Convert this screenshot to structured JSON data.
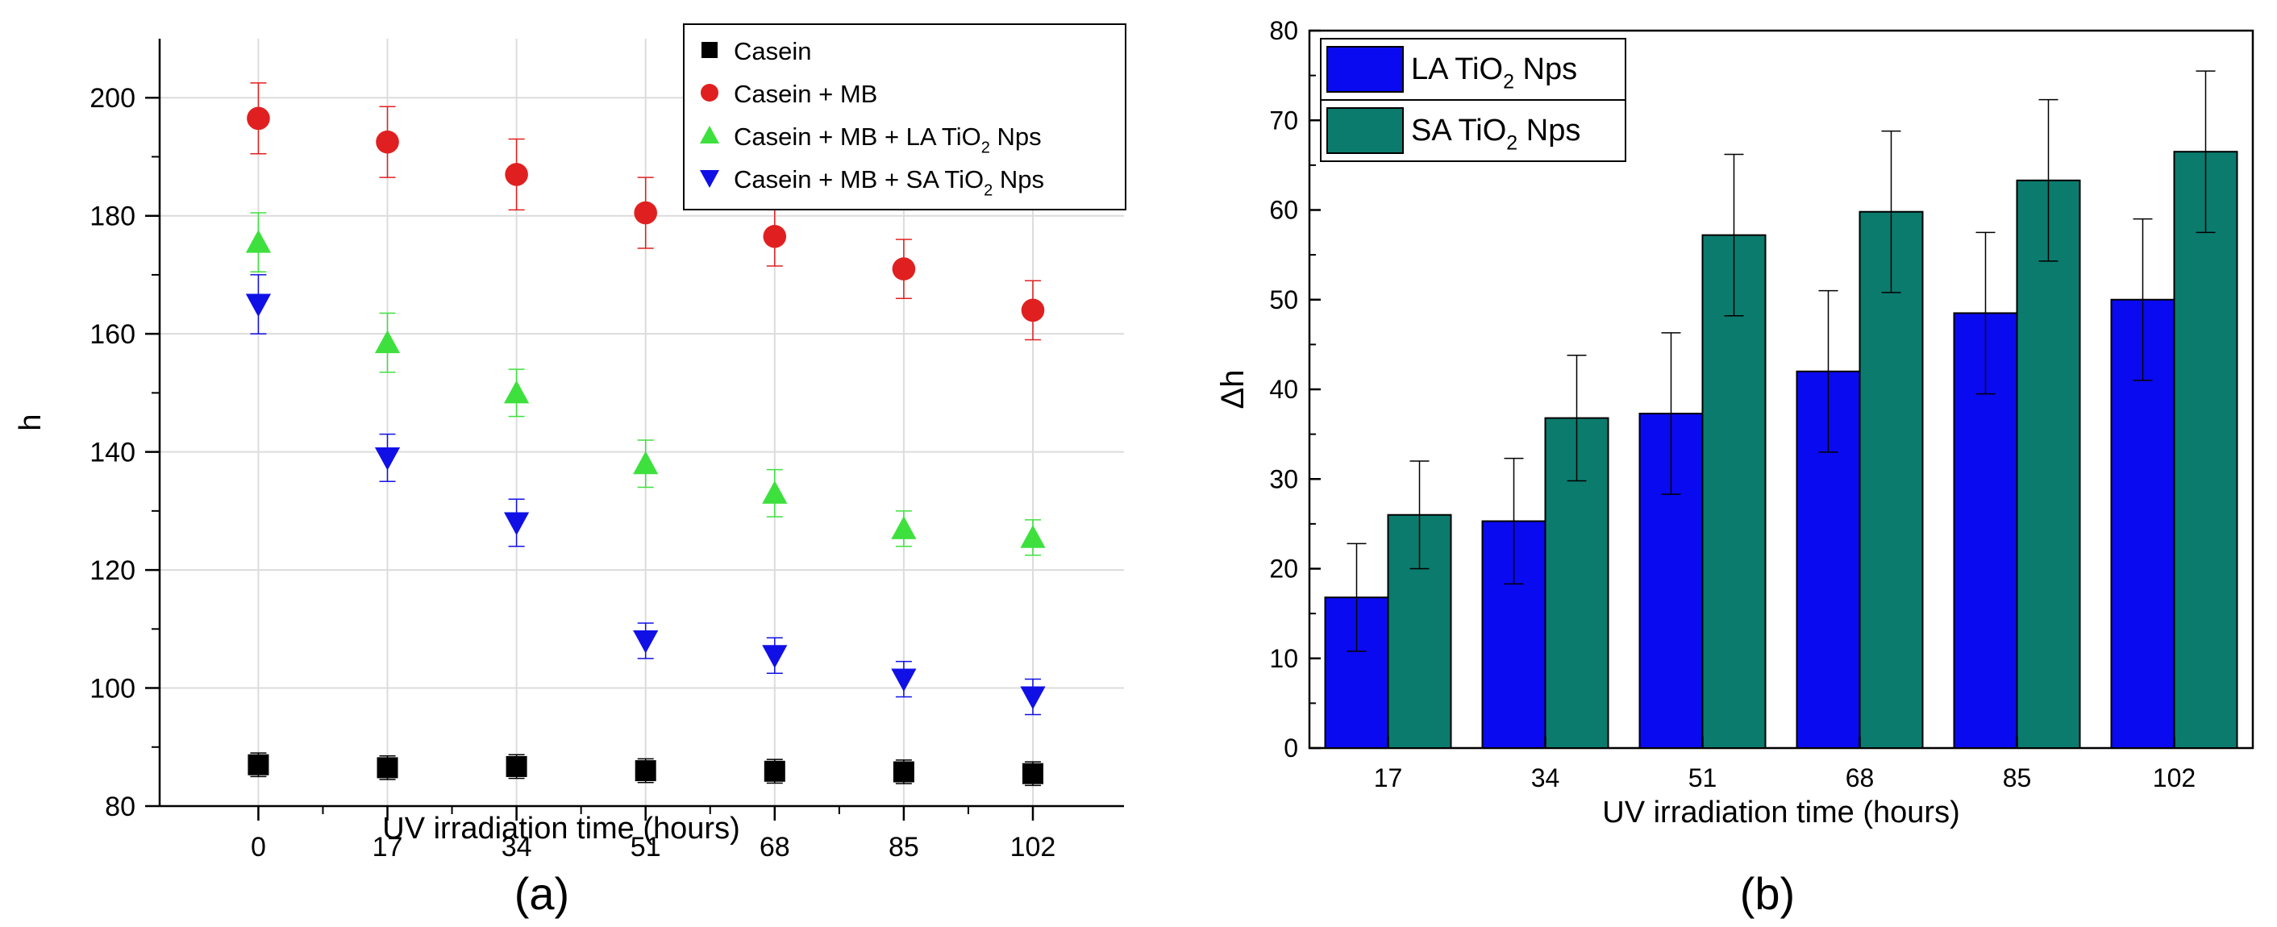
{
  "panels": {
    "a_label": "(a)",
    "b_label": "(b)"
  },
  "colors": {
    "casein": "#000000",
    "casein_mb": "#e02020",
    "casein_mb_la": "#3ee03e",
    "casein_mb_sa": "#1010e6",
    "la_bar": "#0a0af0",
    "sa_bar": "#0b7b6e",
    "grid": "#dcdcdc",
    "error": "#000000"
  },
  "chart_data": [
    {
      "type": "scatter",
      "panel": "(a)",
      "xlabel": "UV irradiation time (hours)",
      "ylabel": "h",
      "x": [
        0,
        17,
        34,
        51,
        68,
        85,
        102
      ],
      "x_ticks": [
        "0",
        "17",
        "34",
        "51",
        "68",
        "85",
        "102"
      ],
      "ylim": [
        80,
        210
      ],
      "y_ticks": [
        80,
        100,
        120,
        140,
        160,
        180,
        200
      ],
      "grid": true,
      "legend_position": "top-right",
      "series": [
        {
          "name": "Casein",
          "marker": "square",
          "color": "#000000",
          "values": [
            87,
            86.5,
            86.7,
            86,
            85.9,
            85.8,
            85.5
          ],
          "errors": [
            2,
            2,
            2,
            2,
            2,
            2,
            2
          ]
        },
        {
          "name": "Casein + MB",
          "marker": "circle",
          "color": "#e02020",
          "values": [
            196.5,
            192.5,
            187,
            180.5,
            176.5,
            171,
            164
          ],
          "errors": [
            6,
            6,
            6,
            6,
            5,
            5,
            5
          ]
        },
        {
          "name_parts": [
            "Casein + MB + LA TiO",
            "2",
            " Nps"
          ],
          "marker": "triangle-up",
          "color": "#3ee03e",
          "values": [
            175.5,
            158.5,
            150,
            138,
            133,
            127,
            125.5
          ],
          "errors": [
            5,
            5,
            4,
            4,
            4,
            3,
            3
          ]
        },
        {
          "name_parts": [
            "Casein + MB + SA TiO",
            "2",
            " Nps"
          ],
          "marker": "triangle-down",
          "color": "#1010e6",
          "values": [
            165,
            139,
            128,
            108,
            105.5,
            101.5,
            98.5
          ],
          "errors": [
            5,
            4,
            4,
            3,
            3,
            3,
            3
          ]
        }
      ]
    },
    {
      "type": "bar",
      "panel": "(b)",
      "xlabel": "UV irradiation time (hours)",
      "ylabel": "Δh",
      "categories": [
        "17",
        "34",
        "51",
        "68",
        "85",
        "102"
      ],
      "ylim": [
        0,
        80
      ],
      "y_ticks": [
        0,
        10,
        20,
        30,
        40,
        50,
        60,
        70,
        80
      ],
      "grid": false,
      "legend_position": "top-left",
      "series": [
        {
          "name_parts": [
            "LA TiO",
            "2",
            " Nps"
          ],
          "color": "#0a0af0",
          "values": [
            16.8,
            25.3,
            37.3,
            42,
            48.5,
            50
          ],
          "errors": [
            6,
            7,
            9,
            9,
            9,
            9
          ]
        },
        {
          "name_parts": [
            "SA TiO",
            "2",
            " Nps"
          ],
          "color": "#0b7b6e",
          "values": [
            26,
            36.8,
            57.2,
            59.8,
            63.3,
            66.5
          ],
          "errors": [
            6,
            7,
            9,
            9,
            9,
            9
          ]
        }
      ]
    }
  ]
}
